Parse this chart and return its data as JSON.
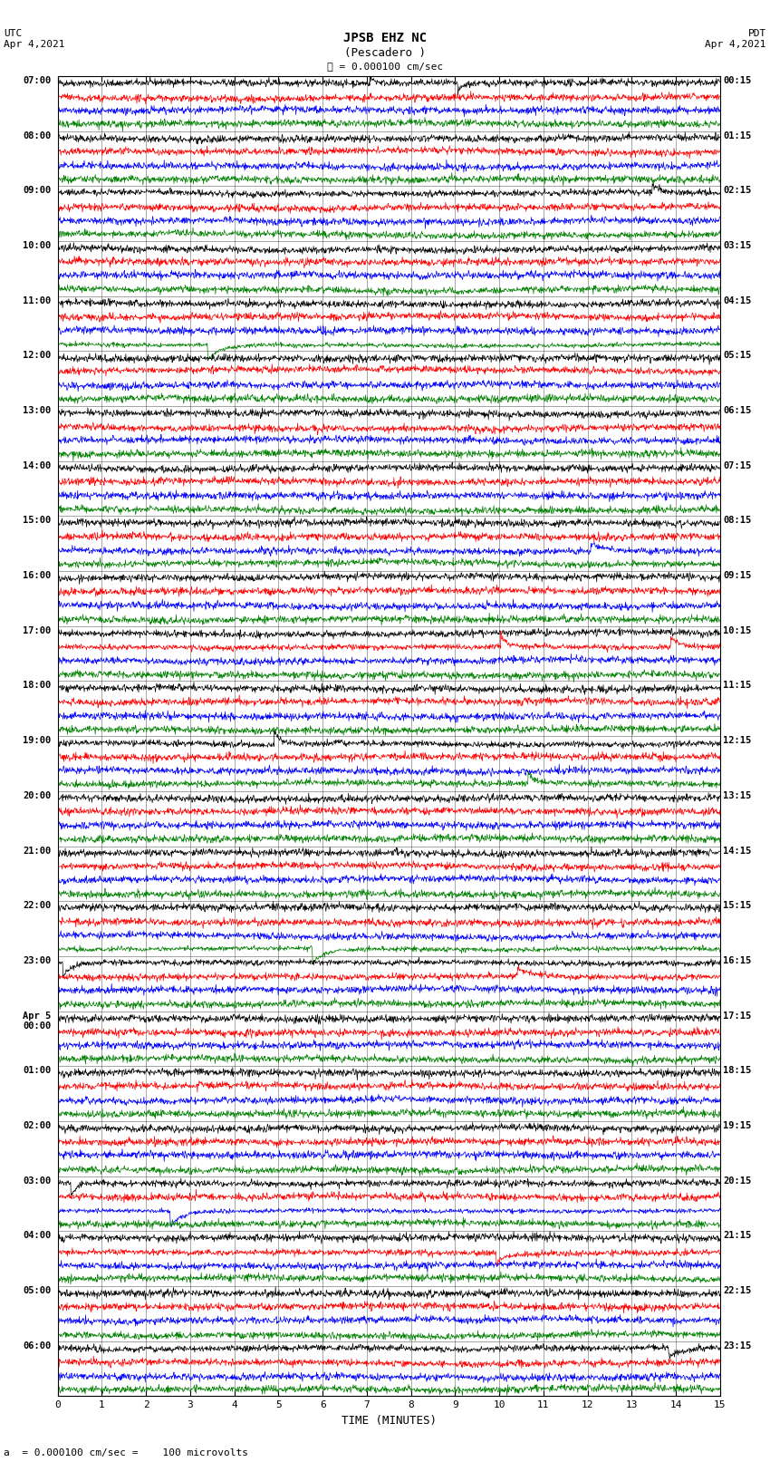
{
  "title_line1": "JPSB EHZ NC",
  "title_line2": "(Pescadero )",
  "scale_label": "= 0.000100 cm/sec",
  "bottom_label": "a  = 0.000100 cm/sec =    100 microvolts",
  "xlabel": "TIME (MINUTES)",
  "utc_label": "UTC\nApr 4,2021",
  "pdt_label": "PDT\nApr 4,2021",
  "left_times": [
    "07:00",
    "08:00",
    "09:00",
    "10:00",
    "11:00",
    "12:00",
    "13:00",
    "14:00",
    "15:00",
    "16:00",
    "17:00",
    "18:00",
    "19:00",
    "20:00",
    "21:00",
    "22:00",
    "23:00",
    "Apr 5\n00:00",
    "01:00",
    "02:00",
    "03:00",
    "04:00",
    "05:00",
    "06:00"
  ],
  "right_times": [
    "00:15",
    "01:15",
    "02:15",
    "03:15",
    "04:15",
    "05:15",
    "06:15",
    "07:15",
    "08:15",
    "09:15",
    "10:15",
    "11:15",
    "12:15",
    "13:15",
    "14:15",
    "15:15",
    "16:15",
    "17:15",
    "18:15",
    "19:15",
    "20:15",
    "21:15",
    "22:15",
    "23:15"
  ],
  "num_hours": 24,
  "traces_per_hour": 4,
  "colors": [
    "black",
    "red",
    "blue",
    "green"
  ],
  "signal_seed": 42,
  "bg_color": "white",
  "xmin": 0,
  "xmax": 15,
  "xticks": [
    0,
    1,
    2,
    3,
    4,
    5,
    6,
    7,
    8,
    9,
    10,
    11,
    12,
    13,
    14,
    15
  ]
}
